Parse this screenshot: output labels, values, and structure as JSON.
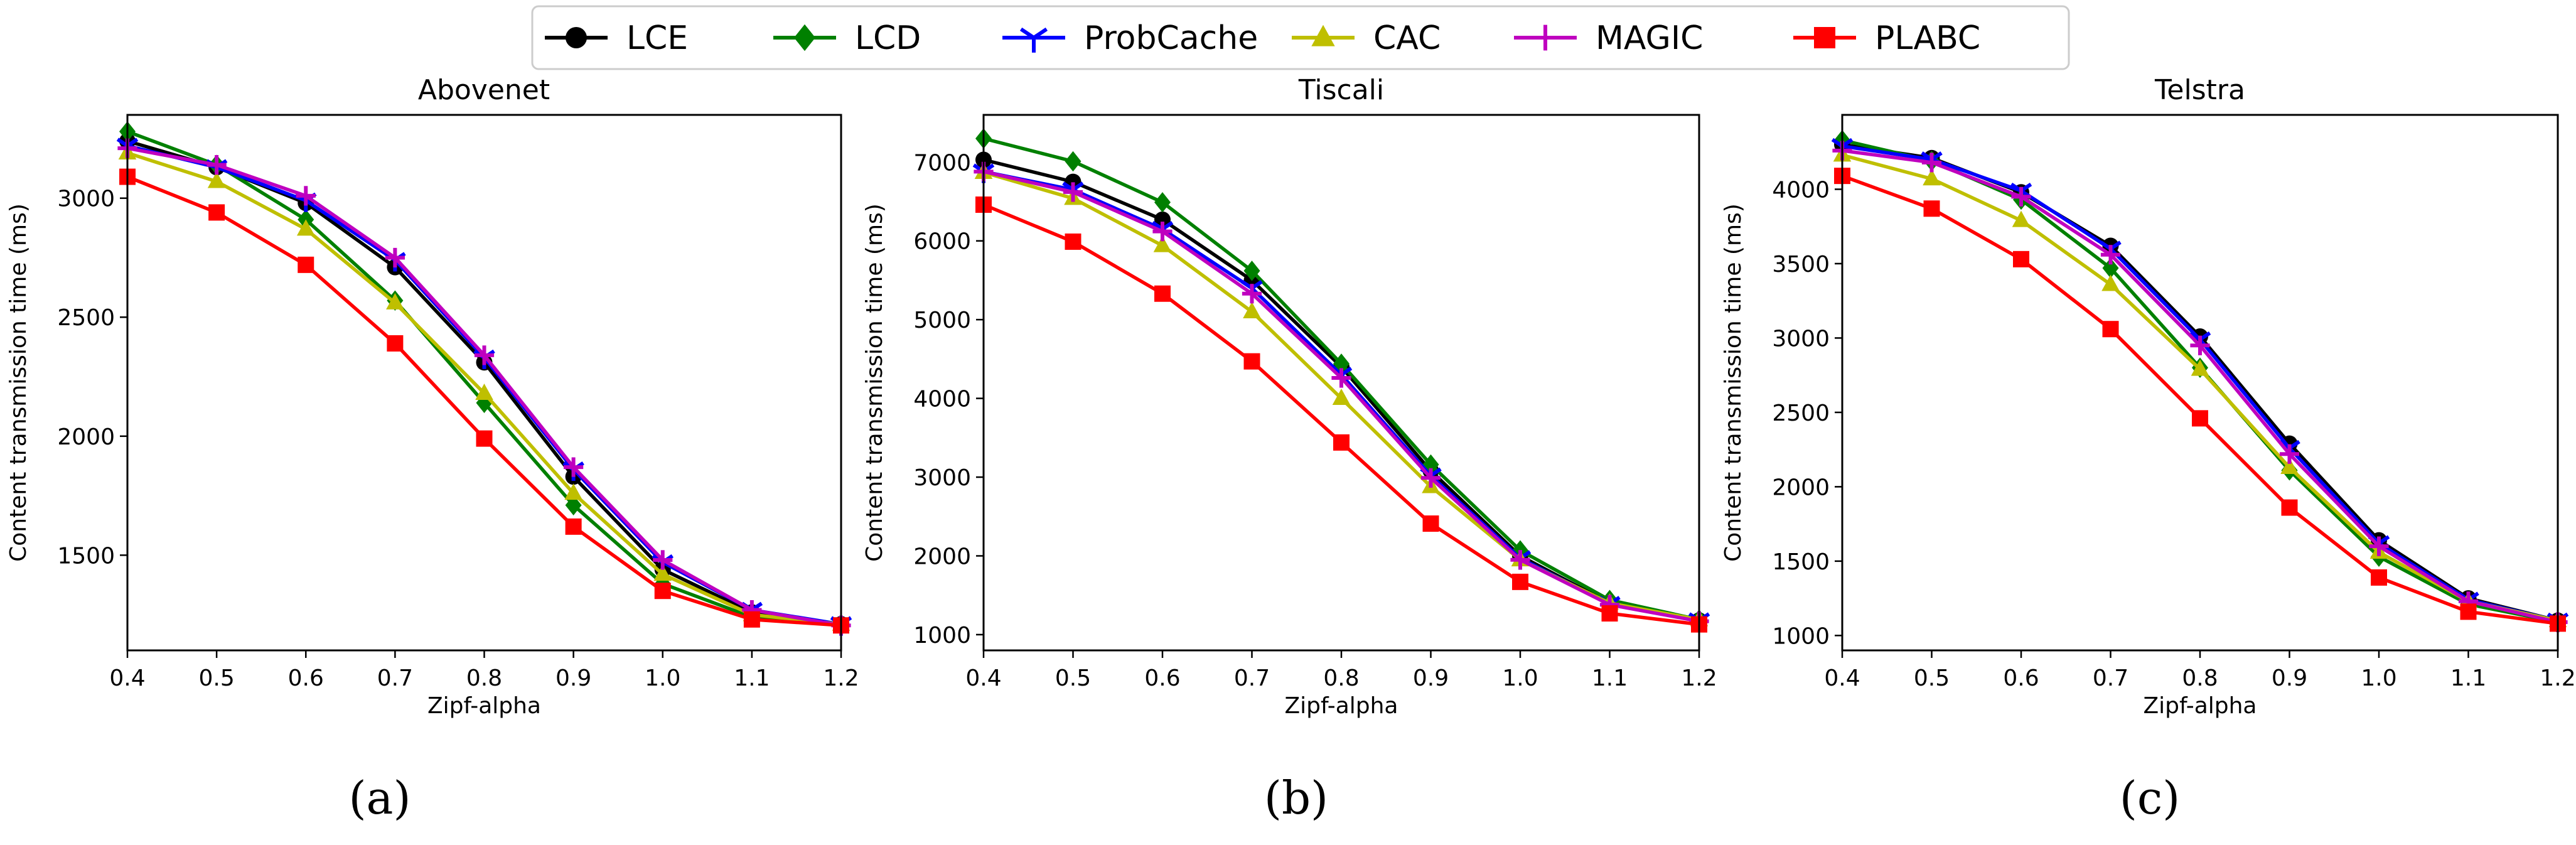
{
  "legend": {
    "items": [
      {
        "name": "LCE",
        "color": "#000000",
        "marker": "circle"
      },
      {
        "name": "LCD",
        "color": "#008000",
        "marker": "diamond"
      },
      {
        "name": "ProbCache",
        "color": "#0000ff",
        "marker": "tri_down"
      },
      {
        "name": "CAC",
        "color": "#bfbf00",
        "marker": "triangle"
      },
      {
        "name": "MAGIC",
        "color": "#bf00bf",
        "marker": "plus"
      },
      {
        "name": "PLABC",
        "color": "#ff0000",
        "marker": "square"
      }
    ]
  },
  "chart_data": [
    {
      "type": "line",
      "title": "Abovenet",
      "panel_label": "(a)",
      "xlabel": "Zipf-alpha",
      "ylabel": "Content transmission time (ms)",
      "xlim": [
        0.4,
        1.2
      ],
      "ylim": [
        1100,
        3350
      ],
      "xticks": [
        "0.4",
        "0.5",
        "0.6",
        "0.7",
        "0.8",
        "0.9",
        "1.0",
        "1.1",
        "1.2"
      ],
      "yticks": [
        1500,
        2000,
        2500,
        3000
      ],
      "x": [
        0.4,
        0.5,
        0.6,
        0.7,
        0.8,
        0.9,
        1.0,
        1.1,
        1.2
      ],
      "series": [
        {
          "name": "LCE",
          "values": [
            3240,
            3130,
            2980,
            2710,
            2310,
            1830,
            1440,
            1260,
            1210
          ]
        },
        {
          "name": "LCD",
          "values": [
            3280,
            3140,
            2910,
            2570,
            2140,
            1710,
            1380,
            1240,
            1205
          ]
        },
        {
          "name": "ProbCache",
          "values": [
            3220,
            3130,
            2990,
            2740,
            2330,
            1860,
            1470,
            1270,
            1210
          ]
        },
        {
          "name": "CAC",
          "values": [
            3190,
            3070,
            2870,
            2560,
            2180,
            1760,
            1420,
            1250,
            1210
          ]
        },
        {
          "name": "MAGIC",
          "values": [
            3210,
            3140,
            3010,
            2750,
            2340,
            1870,
            1480,
            1270,
            1205
          ]
        },
        {
          "name": "PLABC",
          "values": [
            3090,
            2940,
            2720,
            2390,
            1990,
            1620,
            1350,
            1230,
            1205
          ]
        }
      ]
    },
    {
      "type": "line",
      "title": "Tiscali",
      "panel_label": "(b)",
      "xlabel": "Zipf-alpha",
      "ylabel": "Content transmission time (ms)",
      "xlim": [
        0.4,
        1.2
      ],
      "ylim": [
        800,
        7600
      ],
      "xticks": [
        "0.4",
        "0.5",
        "0.6",
        "0.7",
        "0.8",
        "0.9",
        "1.0",
        "1.1",
        "1.2"
      ],
      "yticks": [
        1000,
        2000,
        3000,
        4000,
        5000,
        6000,
        7000
      ],
      "x": [
        0.4,
        0.5,
        0.6,
        0.7,
        0.8,
        0.9,
        1.0,
        1.1,
        1.2
      ],
      "series": [
        {
          "name": "LCE",
          "values": [
            7030,
            6750,
            6270,
            5500,
            4400,
            3080,
            2000,
            1400,
            1180
          ]
        },
        {
          "name": "LCD",
          "values": [
            7300,
            7010,
            6490,
            5620,
            4440,
            3160,
            2070,
            1440,
            1190
          ]
        },
        {
          "name": "ProbCache",
          "values": [
            6880,
            6650,
            6150,
            5400,
            4300,
            3020,
            1970,
            1390,
            1180
          ]
        },
        {
          "name": "CAC",
          "values": [
            6870,
            6540,
            5940,
            5100,
            4000,
            2880,
            1950,
            1400,
            1190
          ]
        },
        {
          "name": "MAGIC",
          "values": [
            6880,
            6620,
            6120,
            5330,
            4260,
            2990,
            1950,
            1380,
            1170
          ]
        },
        {
          "name": "PLABC",
          "values": [
            6460,
            5990,
            5330,
            4470,
            3440,
            2410,
            1670,
            1270,
            1130
          ]
        }
      ]
    },
    {
      "type": "line",
      "title": "Telstra",
      "panel_label": "(c)",
      "xlabel": "Zipf-alpha",
      "ylabel": "Content transmission time (ms)",
      "xlim": [
        0.4,
        1.2
      ],
      "ylim": [
        900,
        4500
      ],
      "xticks": [
        "0.4",
        "0.5",
        "0.6",
        "0.7",
        "0.8",
        "0.9",
        "1.0",
        "1.1",
        "1.2"
      ],
      "yticks": [
        1000,
        1500,
        2000,
        2500,
        3000,
        3500,
        4000
      ],
      "x": [
        0.4,
        0.5,
        0.6,
        0.7,
        0.8,
        0.9,
        1.0,
        1.1,
        1.2
      ],
      "series": [
        {
          "name": "LCE",
          "values": [
            4300,
            4210,
            3980,
            3620,
            3010,
            2290,
            1640,
            1250,
            1100
          ]
        },
        {
          "name": "LCD",
          "values": [
            4330,
            4190,
            3930,
            3470,
            2800,
            2110,
            1530,
            1210,
            1090
          ]
        },
        {
          "name": "ProbCache",
          "values": [
            4290,
            4200,
            3990,
            3600,
            2990,
            2260,
            1620,
            1240,
            1100
          ]
        },
        {
          "name": "CAC",
          "values": [
            4230,
            4070,
            3790,
            3360,
            2790,
            2130,
            1560,
            1230,
            1100
          ]
        },
        {
          "name": "MAGIC",
          "values": [
            4260,
            4180,
            3950,
            3560,
            2950,
            2220,
            1600,
            1230,
            1090
          ]
        },
        {
          "name": "PLABC",
          "values": [
            4090,
            3870,
            3530,
            3060,
            2460,
            1860,
            1390,
            1160,
            1080
          ]
        }
      ]
    }
  ]
}
